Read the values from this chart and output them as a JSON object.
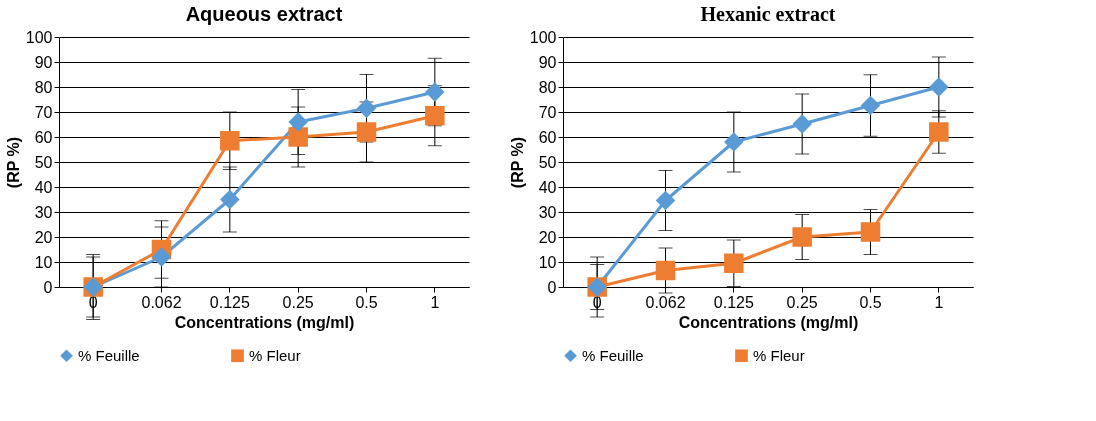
{
  "chart_data": [
    {
      "type": "line",
      "title": "Aqueous extract",
      "xlabel": "Concentrations (mg/ml)",
      "ylabel": "(RP %)",
      "categories": [
        "0",
        "0.062",
        "0.125",
        "0.25",
        "0.5",
        "1"
      ],
      "ylim": [
        0,
        100
      ],
      "yticks": [
        0,
        10,
        20,
        30,
        40,
        50,
        60,
        70,
        80,
        90,
        100
      ],
      "grid": "y",
      "legend": "bottom",
      "series": [
        {
          "name": "% Feuille",
          "color": "#5b9bd5",
          "marker": "diamond",
          "values": [
            0,
            12,
            35,
            66,
            71.5,
            78
          ],
          "errors": [
            13,
            12,
            13,
            13,
            13.5,
            13.5
          ]
        },
        {
          "name": "% Fleur",
          "color": "#ed7d31",
          "marker": "square",
          "values": [
            0,
            15,
            58.5,
            60,
            62,
            68.5
          ],
          "errors": [
            12,
            11.5,
            11.5,
            12,
            12,
            12
          ]
        }
      ]
    },
    {
      "type": "line",
      "title": "Hexanic extract",
      "xlabel": "Concentrations (mg/ml)",
      "ylabel": "(RP %)",
      "categories": [
        "0",
        "0.062",
        "0.125",
        "0.25",
        "0.5",
        "1"
      ],
      "ylim": [
        0,
        100
      ],
      "yticks": [
        0,
        10,
        20,
        30,
        40,
        50,
        60,
        70,
        80,
        90,
        100
      ],
      "grid": "y",
      "legend": "bottom",
      "series": [
        {
          "name": "% Feuille",
          "color": "#5b9bd5",
          "marker": "diamond",
          "values": [
            0,
            34.6,
            58,
            65.2,
            72.6,
            80
          ],
          "errors": [
            12,
            12,
            12,
            12,
            12.3,
            12
          ]
        },
        {
          "name": "% Fleur",
          "color": "#ed7d31",
          "marker": "square",
          "values": [
            0,
            6.6,
            9.5,
            20,
            22,
            62
          ],
          "errors": [
            9,
            9,
            9.3,
            9,
            9,
            8.5
          ]
        }
      ]
    }
  ]
}
